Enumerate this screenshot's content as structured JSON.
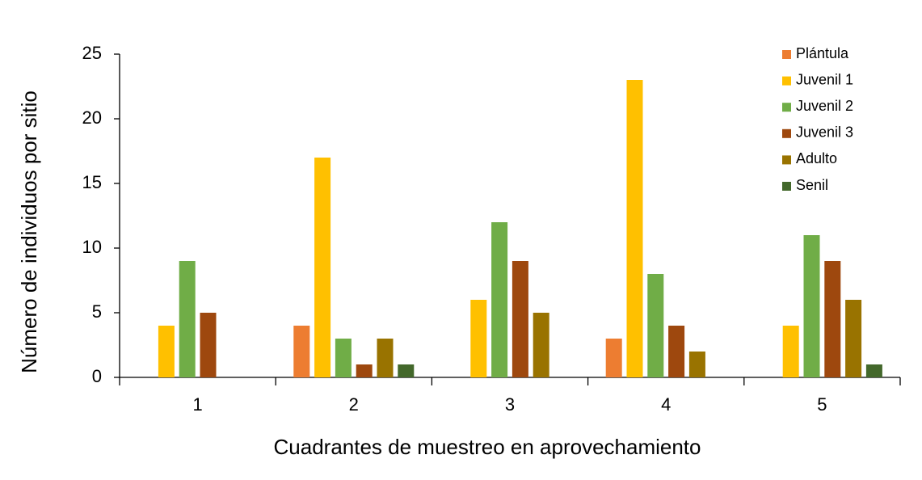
{
  "chart_data": {
    "type": "bar",
    "xlabel": "Cuadrantes de muestreo en aprovechamiento",
    "ylabel": "Número de individuos por sitio",
    "categories": [
      "1",
      "2",
      "3",
      "4",
      "5"
    ],
    "series": [
      {
        "name": "Plántula",
        "color": "#ED7D31",
        "values": [
          0,
          4,
          0,
          3,
          0
        ]
      },
      {
        "name": "Juvenil 1",
        "color": "#FFC000",
        "values": [
          4,
          17,
          6,
          23,
          4
        ]
      },
      {
        "name": "Juvenil 2",
        "color": "#70AD47",
        "values": [
          9,
          3,
          12,
          8,
          11
        ]
      },
      {
        "name": "Juvenil 3",
        "color": "#9E480E",
        "values": [
          5,
          1,
          9,
          4,
          9
        ]
      },
      {
        "name": "Adulto",
        "color": "#997300",
        "values": [
          0,
          3,
          5,
          2,
          6
        ]
      },
      {
        "name": "Senil",
        "color": "#43682B",
        "values": [
          0,
          1,
          0,
          0,
          1
        ]
      }
    ],
    "ylim": [
      0,
      25
    ],
    "yticks": [
      0,
      5,
      10,
      15,
      20,
      25
    ],
    "grid": false,
    "legend": "upper right"
  }
}
